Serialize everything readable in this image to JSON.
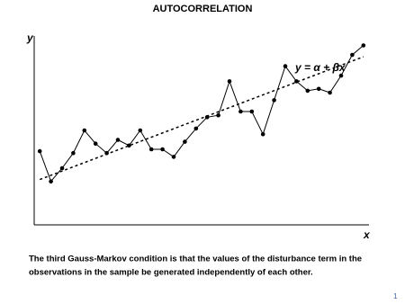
{
  "chart_data": {
    "type": "line",
    "title": "AUTOCORRELATION",
    "x_label": "x",
    "y_label": "y",
    "annotation": "y = α + βx",
    "x": [
      1,
      2,
      3,
      4,
      5,
      6,
      7,
      8,
      9,
      10,
      11,
      12,
      13,
      14,
      15,
      16,
      17,
      18,
      19,
      20,
      21,
      22,
      23,
      24,
      25,
      26,
      27,
      28,
      29,
      30
    ],
    "values": [
      39,
      23,
      30,
      38,
      50,
      43,
      38,
      45,
      42,
      50,
      40,
      40,
      36,
      44,
      51,
      57,
      58,
      76,
      60,
      60,
      48,
      66,
      84,
      76,
      71,
      72,
      70,
      79,
      90,
      95
    ],
    "color": "#000000",
    "trend": {
      "x": [
        1,
        30
      ],
      "values": [
        24,
        89
      ]
    },
    "xlim": [
      0.5,
      30.5
    ],
    "ylim": [
      0,
      100
    ]
  },
  "caption": [
    "The third Gauss-Markov condition is that the values of the disturbance term in the",
    "observations in the sample be generated independently of each other."
  ],
  "page_number": "1"
}
